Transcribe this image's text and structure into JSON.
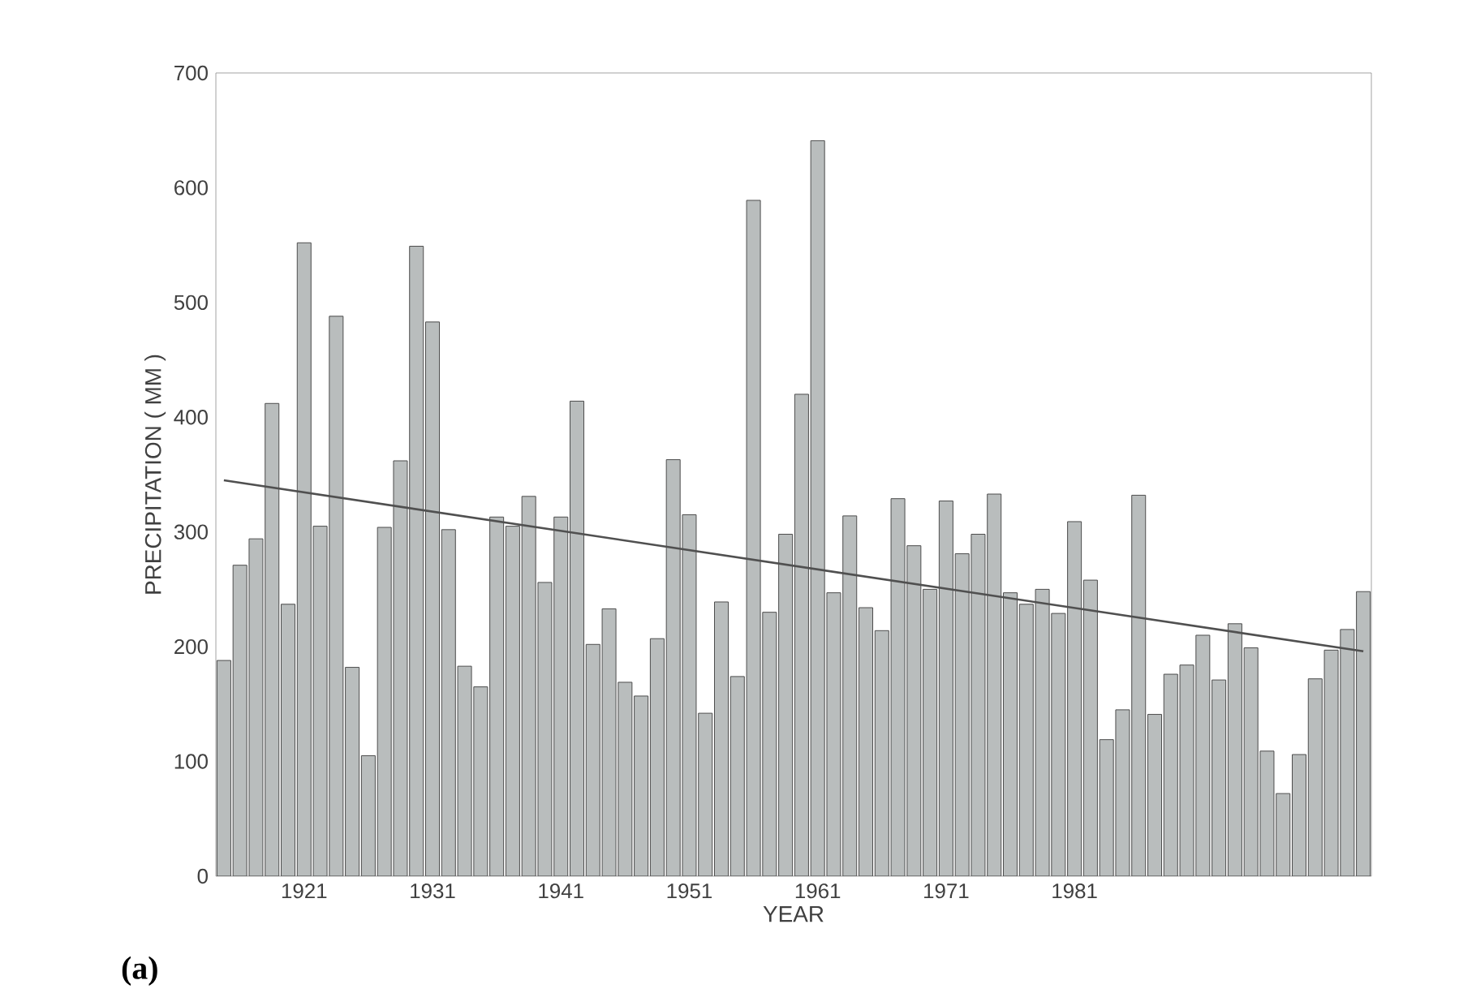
{
  "chart_data": {
    "type": "bar",
    "xlabel": "YEAR",
    "ylabel": "PRECIPITATION ( MM )",
    "annotations": [
      "**(a)**"
    ],
    "categories": [
      null,
      null,
      null,
      null,
      null,
      "1921",
      null,
      null,
      null,
      null,
      null,
      null,
      null,
      "1931",
      null,
      null,
      null,
      null,
      null,
      null,
      null,
      "1941",
      null,
      null,
      null,
      null,
      null,
      null,
      null,
      "1951",
      null,
      null,
      null,
      null,
      null,
      null,
      null,
      "1961",
      null,
      null,
      null,
      null,
      null,
      null,
      null,
      "1971",
      null,
      null,
      null,
      null,
      null,
      null,
      null,
      "1981",
      null,
      null,
      null,
      null,
      null,
      null,
      null,
      null,
      null,
      null,
      null,
      null,
      null,
      null,
      null,
      null,
      null,
      null
    ],
    "series": [
      {
        "color": "#b9bdbd",
        "values": [
          188,
          271,
          294,
          412,
          237,
          552,
          305,
          488,
          182,
          105,
          304,
          362,
          549,
          483,
          302,
          183,
          165,
          313,
          305,
          331,
          256,
          313,
          414,
          202,
          233,
          169,
          157,
          207,
          363,
          315,
          142,
          239,
          174,
          589,
          230,
          298,
          420,
          641,
          247,
          314,
          234,
          214,
          329,
          288,
          250,
          327,
          281,
          298,
          333,
          247,
          237,
          250,
          229,
          309,
          258,
          119,
          145,
          332,
          141,
          176,
          184,
          210,
          171,
          220,
          199,
          109,
          72,
          106,
          172,
          197,
          215,
          248
        ]
      },
      {
        "type": "line",
        "color": "#505050",
        "values": [
          345,
          null,
          null,
          null,
          null,
          null,
          null,
          null,
          null,
          null,
          null,
          null,
          null,
          null,
          null,
          null,
          null,
          null,
          null,
          null,
          null,
          null,
          null,
          null,
          null,
          null,
          null,
          null,
          null,
          null,
          null,
          null,
          null,
          null,
          null,
          null,
          null,
          null,
          null,
          null,
          null,
          null,
          null,
          null,
          null,
          null,
          null,
          null,
          null,
          null,
          null,
          null,
          null,
          null,
          null,
          null,
          null,
          null,
          null,
          null,
          null,
          null,
          null,
          null,
          null,
          null,
          null,
          null,
          null,
          null,
          null,
          196
        ]
      }
    ],
    "ylim": [
      0,
      700
    ],
    "yticks": [
      0,
      100,
      200,
      300,
      400,
      500,
      600,
      700
    ],
    "grid": false
  }
}
